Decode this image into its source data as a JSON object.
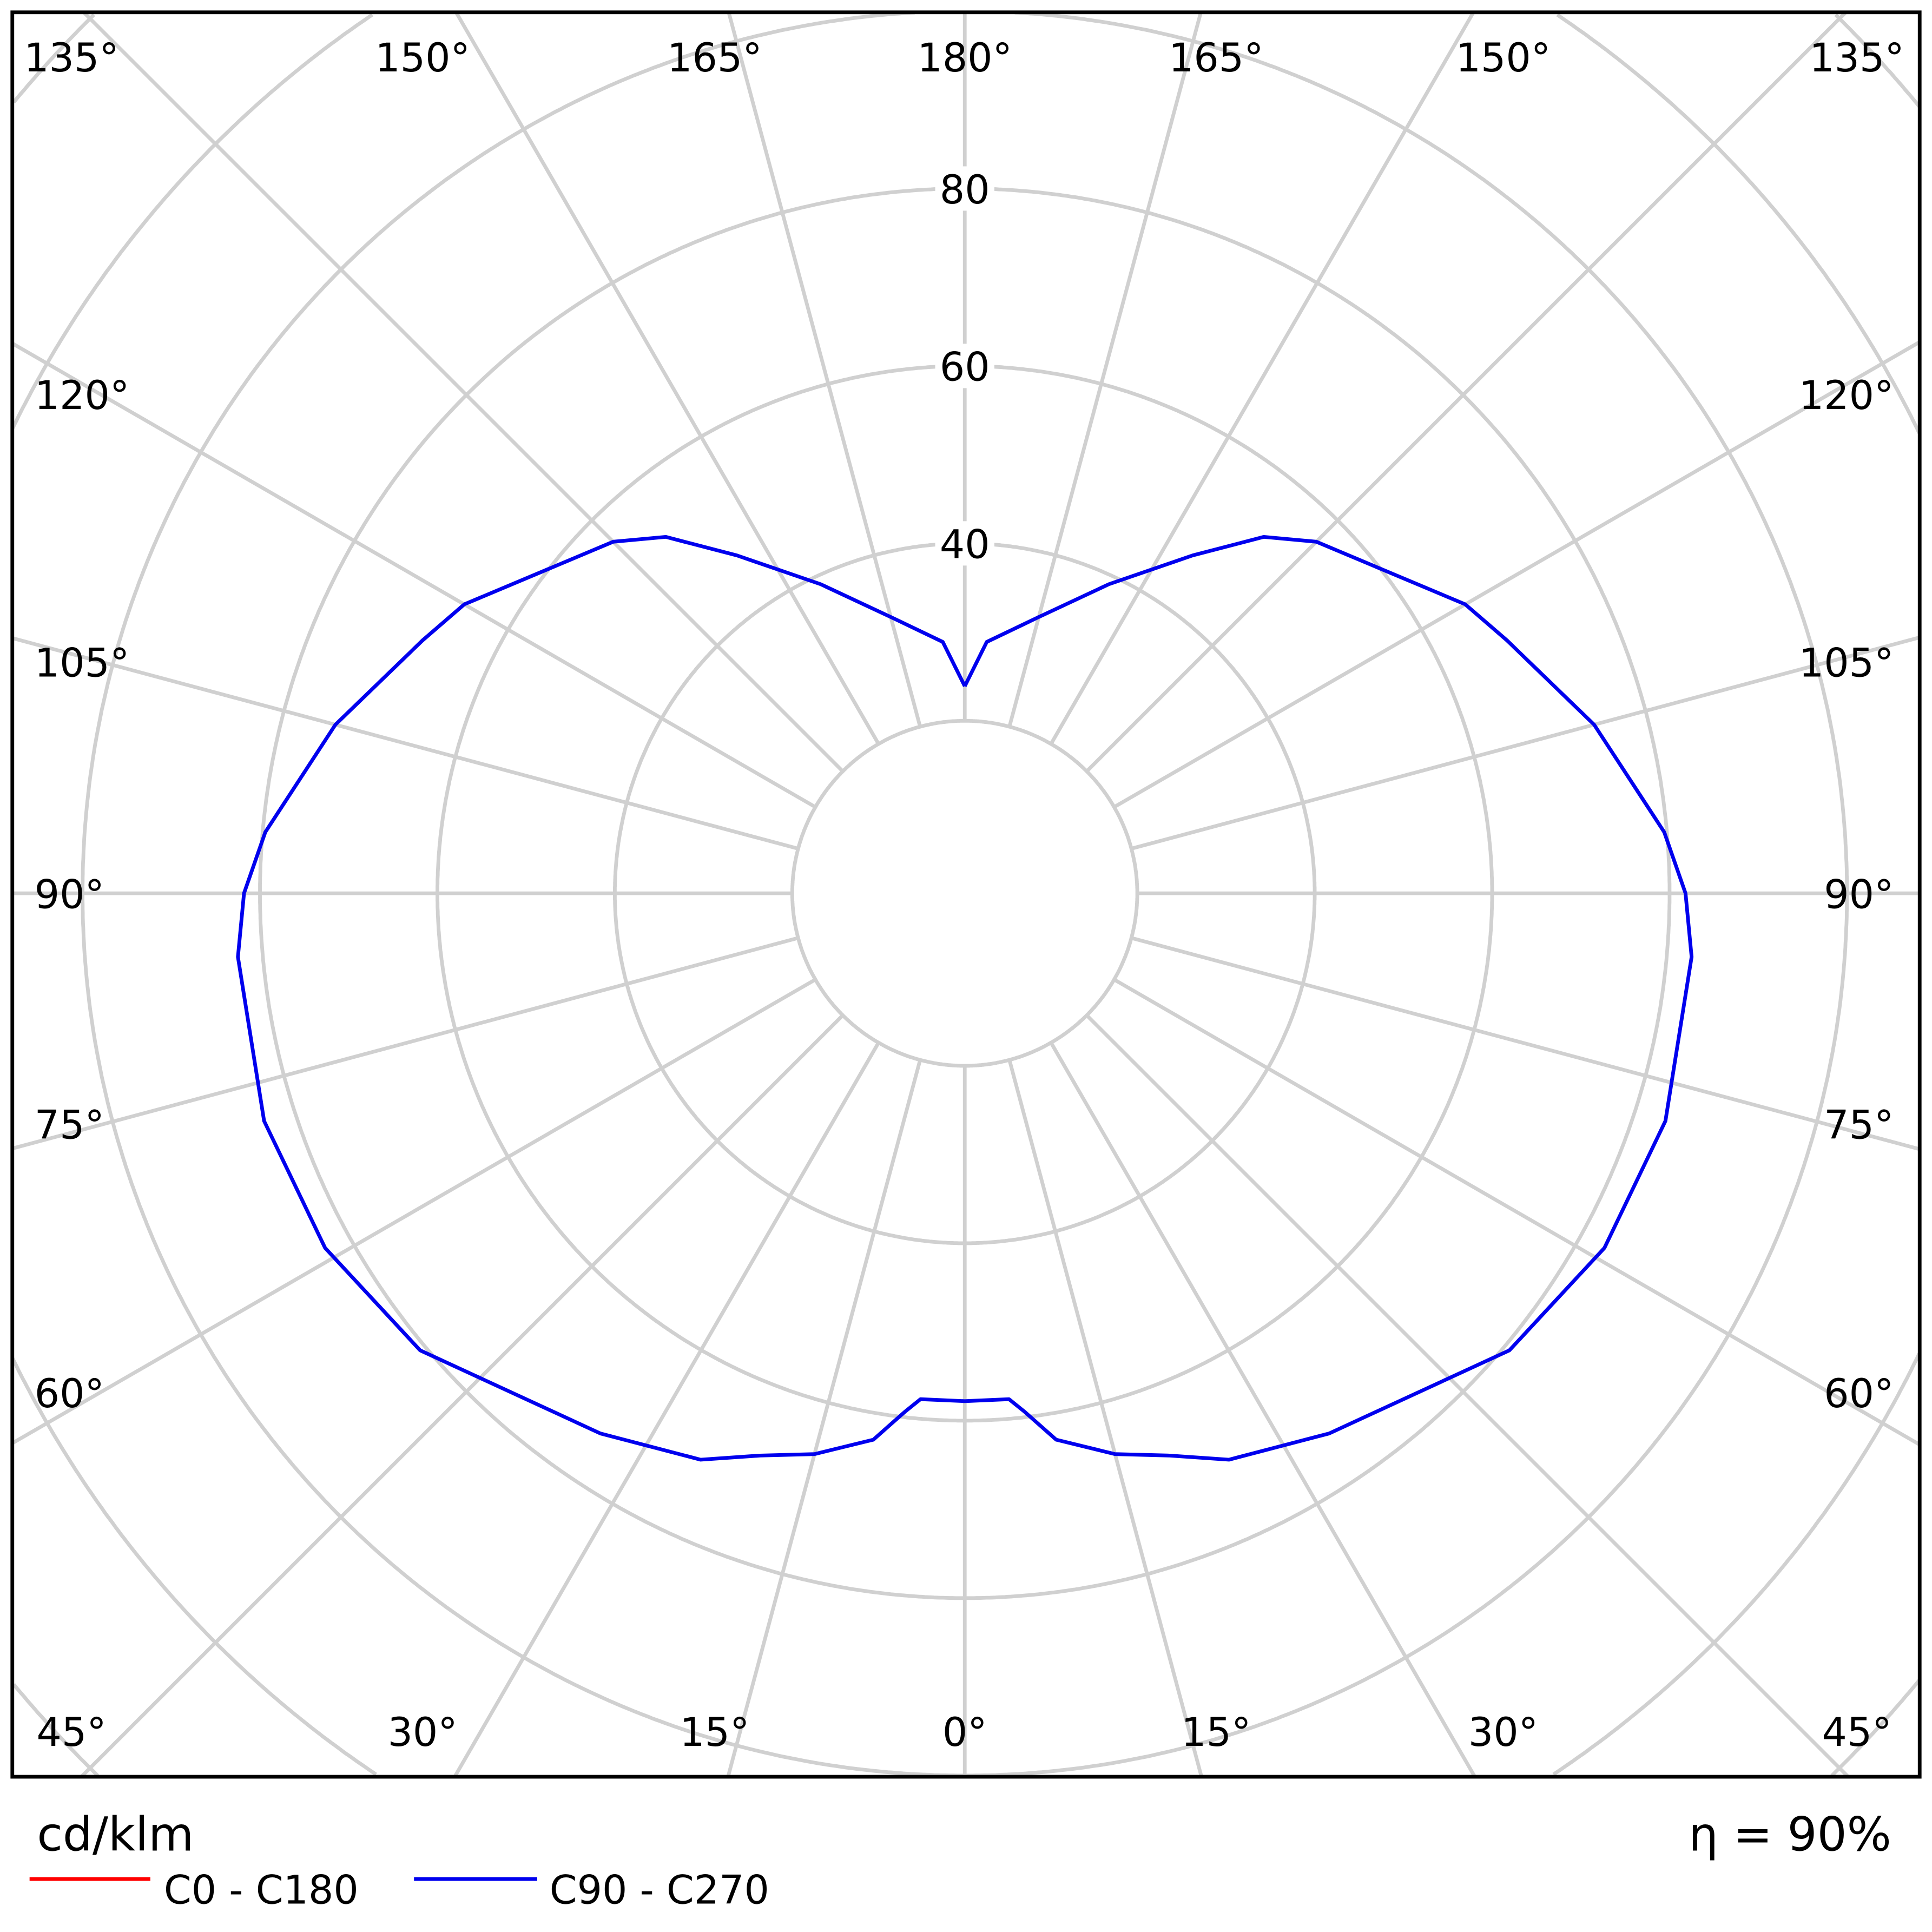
{
  "chart_data": {
    "type": "polar-line",
    "unit_label": "cd/klm",
    "efficiency_label": "η = 90%",
    "radial_ticks": [
      40,
      60,
      80
    ],
    "radial_grid": [
      20,
      40,
      60,
      80,
      100,
      120,
      140,
      160
    ],
    "angle_grid_step_deg": 15,
    "angle_labels": {
      "top": [
        "135°",
        "150°",
        "165°",
        "180°",
        "165°",
        "150°",
        "135°"
      ],
      "left": [
        "120°",
        "105°",
        "90°",
        "75°",
        "60°"
      ],
      "right": [
        "120°",
        "105°",
        "90°",
        "75°",
        "60°"
      ],
      "bottom": [
        "45°",
        "30°",
        "15°",
        "0°",
        "15°",
        "30°",
        "45°"
      ]
    },
    "grid": true,
    "legend_position": "bottom-left",
    "series": [
      {
        "name": "C0 - C180",
        "color": "#ff0000",
        "values": []
      },
      {
        "name": "C90 - C270",
        "color": "#0000ee",
        "angles_deg": [
          0,
          5,
          6.6,
          9.5,
          15,
          20,
          25,
          34,
          50,
          61,
          72,
          85,
          90,
          95,
          105,
          115,
          120,
          135,
          140,
          146,
          155,
          165,
          175,
          180
        ],
        "values": [
          57.8,
          57.8,
          59.4,
          63,
          66,
          68,
          71,
          74,
          80.7,
          83,
          83.6,
          82.8,
          81.8,
          79.7,
          74,
          68,
          65.7,
          56.6,
          53,
          46.5,
          39,
          32.8,
          29,
          23.9
        ]
      }
    ]
  }
}
